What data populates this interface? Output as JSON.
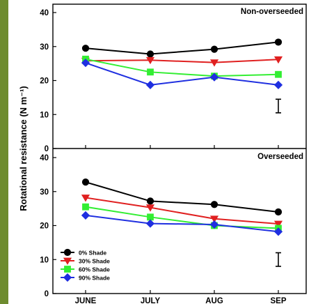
{
  "colors": {
    "left_band": "#6e8c2f",
    "series_colors": [
      "#000000",
      "#e02020",
      "#33ee33",
      "#1f2fe0"
    ]
  },
  "chart_data": [
    {
      "type": "line",
      "title": "Non-overseeded",
      "categories": [
        "JUNE",
        "JULY",
        "AUG",
        "SEP"
      ],
      "ylabel": "Rotational resistance (N m⁻¹)",
      "ylim": [
        0,
        40
      ],
      "yticks": [
        "0",
        "10",
        "20",
        "30",
        "40"
      ],
      "error_bar": {
        "x_index": 3.0,
        "center": 12.5,
        "half_height": 2.0
      },
      "series": [
        {
          "name": "0% Shade",
          "color": "#000000",
          "marker": "circle",
          "values": [
            29.5,
            27.8,
            29.2,
            31.3
          ]
        },
        {
          "name": "30% Shade",
          "color": "#e02020",
          "marker": "triangle-down",
          "values": [
            25.8,
            26.0,
            25.3,
            26.2
          ]
        },
        {
          "name": "60% Shade",
          "color": "#33ee33",
          "marker": "square",
          "values": [
            26.3,
            22.5,
            21.3,
            21.8
          ]
        },
        {
          "name": "90% Shade",
          "color": "#1f2fe0",
          "marker": "diamond",
          "values": [
            25.2,
            18.7,
            21.0,
            18.7
          ]
        }
      ]
    },
    {
      "type": "line",
      "title": "Overseeded",
      "categories": [
        "JUNE",
        "JULY",
        "AUG",
        "SEP"
      ],
      "ylim": [
        0,
        40
      ],
      "yticks": [
        "0",
        "10",
        "20",
        "30",
        "40"
      ],
      "legend_position": "bottom-left",
      "error_bar": {
        "x_index": 3.0,
        "center": 10.0,
        "half_height": 2.0
      },
      "series": [
        {
          "name": "0% Shade",
          "color": "#000000",
          "marker": "circle",
          "values": [
            32.8,
            27.2,
            26.2,
            24.0
          ]
        },
        {
          "name": "30% Shade",
          "color": "#e02020",
          "marker": "triangle-down",
          "values": [
            28.2,
            25.3,
            22.0,
            20.5
          ]
        },
        {
          "name": "60% Shade",
          "color": "#33ee33",
          "marker": "square",
          "values": [
            25.5,
            22.5,
            20.0,
            19.2
          ]
        },
        {
          "name": "90% Shade",
          "color": "#1f2fe0",
          "marker": "diamond",
          "values": [
            23.0,
            20.6,
            20.3,
            18.2
          ]
        }
      ]
    }
  ]
}
